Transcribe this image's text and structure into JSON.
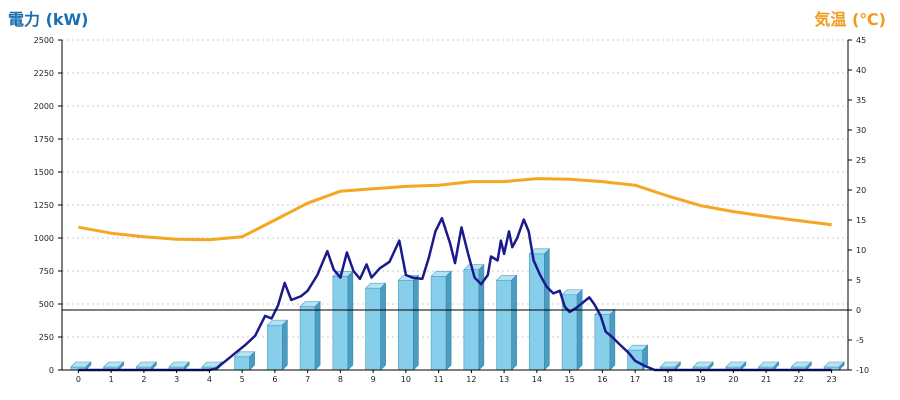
{
  "chart_data": {
    "type": "bar+line",
    "left_title": "電力 (kW)",
    "right_title": "気温 (℃)",
    "categories": [
      "0",
      "1",
      "2",
      "3",
      "4",
      "5",
      "6",
      "7",
      "8",
      "9",
      "10",
      "11",
      "12",
      "13",
      "14",
      "15",
      "16",
      "17",
      "18",
      "19",
      "20",
      "21",
      "22",
      "23"
    ],
    "y_left": {
      "ylim": [
        0,
        2500
      ],
      "ticks": [
        "0",
        "250",
        "500",
        "750",
        "1000",
        "1250",
        "1500",
        "1750",
        "2000",
        "2250",
        "2500"
      ]
    },
    "y_right": {
      "ylim": [
        -10,
        45
      ],
      "ticks": [
        "-10",
        "-5",
        "0",
        "5",
        "10",
        "15",
        "20",
        "25",
        "30",
        "35",
        "40",
        "45"
      ]
    },
    "grid": true,
    "series": [
      {
        "kind": "bar",
        "axis": "left",
        "color": "#87ceeb",
        "values": [
          0,
          0,
          0,
          0,
          0,
          100,
          340,
          480,
          710,
          620,
          680,
          710,
          760,
          680,
          880,
          570,
          420,
          150,
          0,
          0,
          0,
          0,
          0,
          0
        ]
      },
      {
        "kind": "line",
        "axis": "left",
        "color": "#1a1a8c",
        "points": [
          [
            0,
            0
          ],
          [
            1,
            0
          ],
          [
            2,
            0
          ],
          [
            3,
            0
          ],
          [
            4,
            0
          ],
          [
            4.2,
            10
          ],
          [
            4.5,
            70
          ],
          [
            4.8,
            130
          ],
          [
            5.1,
            190
          ],
          [
            5.4,
            260
          ],
          [
            5.7,
            410
          ],
          [
            5.9,
            390
          ],
          [
            6.1,
            490
          ],
          [
            6.3,
            660
          ],
          [
            6.5,
            530
          ],
          [
            6.8,
            560
          ],
          [
            7.0,
            600
          ],
          [
            7.3,
            720
          ],
          [
            7.6,
            900
          ],
          [
            7.8,
            760
          ],
          [
            8.0,
            700
          ],
          [
            8.2,
            890
          ],
          [
            8.4,
            750
          ],
          [
            8.6,
            690
          ],
          [
            8.8,
            800
          ],
          [
            8.95,
            700
          ],
          [
            9.2,
            770
          ],
          [
            9.5,
            820
          ],
          [
            9.8,
            980
          ],
          [
            10.0,
            720
          ],
          [
            10.2,
            700
          ],
          [
            10.5,
            690
          ],
          [
            10.7,
            850
          ],
          [
            10.9,
            1050
          ],
          [
            11.1,
            1150
          ],
          [
            11.35,
            960
          ],
          [
            11.5,
            810
          ],
          [
            11.7,
            1080
          ],
          [
            11.9,
            880
          ],
          [
            12.1,
            700
          ],
          [
            12.3,
            650
          ],
          [
            12.5,
            720
          ],
          [
            12.6,
            860
          ],
          [
            12.8,
            830
          ],
          [
            12.9,
            980
          ],
          [
            13.0,
            880
          ],
          [
            13.15,
            1050
          ],
          [
            13.25,
            930
          ],
          [
            13.4,
            1000
          ],
          [
            13.6,
            1140
          ],
          [
            13.75,
            1050
          ],
          [
            13.9,
            830
          ],
          [
            14.1,
            720
          ],
          [
            14.3,
            630
          ],
          [
            14.5,
            580
          ],
          [
            14.7,
            600
          ],
          [
            14.85,
            480
          ],
          [
            15.0,
            440
          ],
          [
            15.2,
            470
          ],
          [
            15.4,
            510
          ],
          [
            15.6,
            550
          ],
          [
            15.75,
            500
          ],
          [
            15.95,
            410
          ],
          [
            16.1,
            290
          ],
          [
            16.3,
            250
          ],
          [
            16.5,
            200
          ],
          [
            16.8,
            130
          ],
          [
            17.0,
            70
          ],
          [
            17.3,
            30
          ],
          [
            17.6,
            0
          ],
          [
            18,
            0
          ],
          [
            19,
            0
          ],
          [
            20,
            0
          ],
          [
            21,
            0
          ],
          [
            22,
            0
          ],
          [
            23,
            0
          ]
        ]
      },
      {
        "kind": "line",
        "axis": "right",
        "color": "#f5a623",
        "points": [
          [
            0,
            13.8
          ],
          [
            1,
            12.8
          ],
          [
            2,
            12.2
          ],
          [
            3,
            11.8
          ],
          [
            4,
            11.7
          ],
          [
            5,
            12.2
          ],
          [
            6,
            15.0
          ],
          [
            7,
            17.8
          ],
          [
            8,
            19.8
          ],
          [
            9,
            20.2
          ],
          [
            10,
            20.6
          ],
          [
            11,
            20.8
          ],
          [
            12,
            21.4
          ],
          [
            13,
            21.4
          ],
          [
            14,
            21.9
          ],
          [
            15,
            21.8
          ],
          [
            16,
            21.4
          ],
          [
            17,
            20.8
          ],
          [
            18,
            19.0
          ],
          [
            19,
            17.4
          ],
          [
            20,
            16.4
          ],
          [
            21,
            15.6
          ],
          [
            22,
            14.9
          ],
          [
            23,
            14.2
          ]
        ]
      }
    ]
  }
}
